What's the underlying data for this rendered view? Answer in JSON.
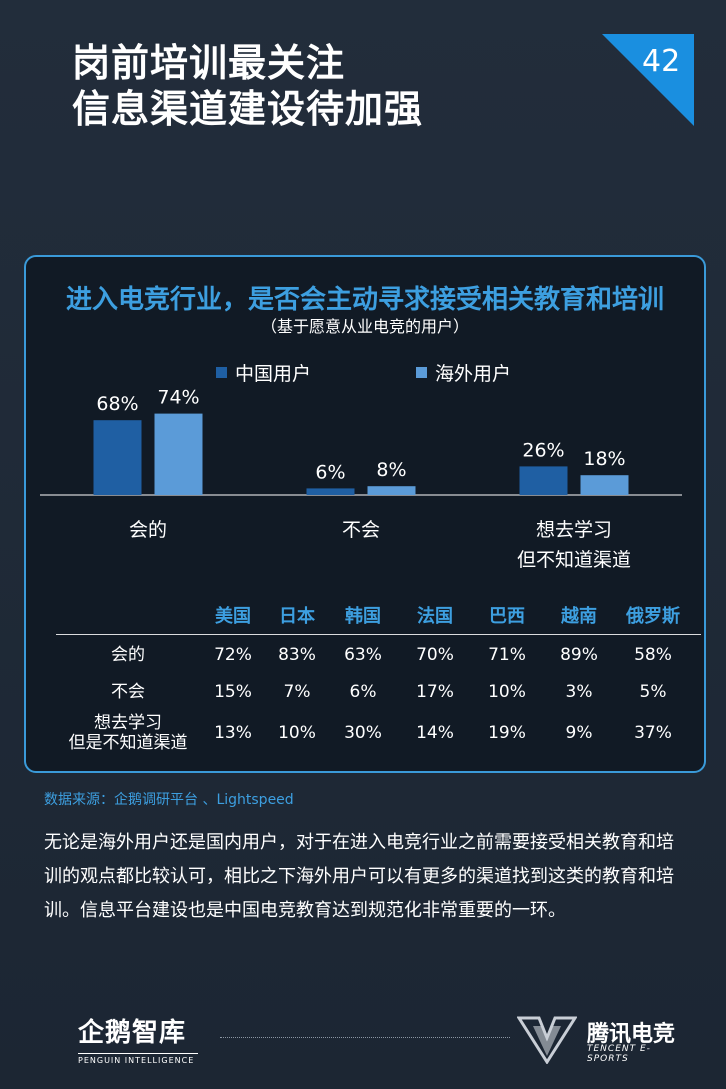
{
  "page": {
    "title_line1": "岗前培训最关注",
    "title_line2": "信息渠道建设待加强",
    "page_number": "42"
  },
  "chart_data": {
    "type": "bar",
    "title": "进入电竞行业，是否会主动寻求接受相关教育和培训",
    "subtitle": "（基于愿意从业电竞的用户）",
    "categories": [
      "会的",
      "不会",
      "想去学习\n但不知道渠道"
    ],
    "category_lines": [
      [
        "会的"
      ],
      [
        "不会"
      ],
      [
        "想去学习",
        "但不知道渠道"
      ]
    ],
    "series": [
      {
        "name": "中国用户",
        "values": [
          68,
          6,
          26
        ],
        "labels": [
          "68%",
          "6%",
          "26%"
        ],
        "color": "#1f5fa3"
      },
      {
        "name": "海外用户",
        "values": [
          74,
          8,
          18
        ],
        "labels": [
          "74%",
          "8%",
          "18%"
        ],
        "color": "#5b9bd8"
      }
    ],
    "ylim": [
      0,
      100
    ],
    "legend_position": "top-center",
    "grid": false
  },
  "table": {
    "columns": [
      "美国",
      "日本",
      "韩国",
      "法国",
      "巴西",
      "越南",
      "俄罗斯"
    ],
    "rows": [
      {
        "label": "会的",
        "label_lines": [
          "会的"
        ],
        "values": [
          "72%",
          "83%",
          "63%",
          "70%",
          "71%",
          "89%",
          "58%"
        ]
      },
      {
        "label": "不会",
        "label_lines": [
          "不会"
        ],
        "values": [
          "15%",
          "7%",
          "6%",
          "17%",
          "10%",
          "3%",
          "5%"
        ]
      },
      {
        "label": "想去学习 但是不知道渠道",
        "label_lines": [
          "想去学习",
          "但是不知道渠道"
        ],
        "values": [
          "13%",
          "10%",
          "30%",
          "14%",
          "19%",
          "9%",
          "37%"
        ]
      }
    ]
  },
  "source": "数据来源：企鹅调研平台 、Lightspeed",
  "body_text": "无论是海外用户还是国内用户，对于在进入电竞行业之前需要接受相关教育和培训的观点都比较认可，相比之下海外用户可以有更多的渠道找到这类的教育和培训。信息平台建设也是中国电竞教育达到规范化非常重要的一环。",
  "footer": {
    "left_logo": "企鹅智库",
    "left_logo_sub": "PENGUIN INTELLIGENCE",
    "right_logo": "腾讯电竞",
    "right_logo_sub": "TENCENT E-SPORTS"
  },
  "colors": {
    "accent": "#3d9fe0",
    "background": "#1f2a38",
    "panel": "#111a25",
    "china_bar": "#1f5fa3",
    "overseas_bar": "#5b9bd8"
  }
}
